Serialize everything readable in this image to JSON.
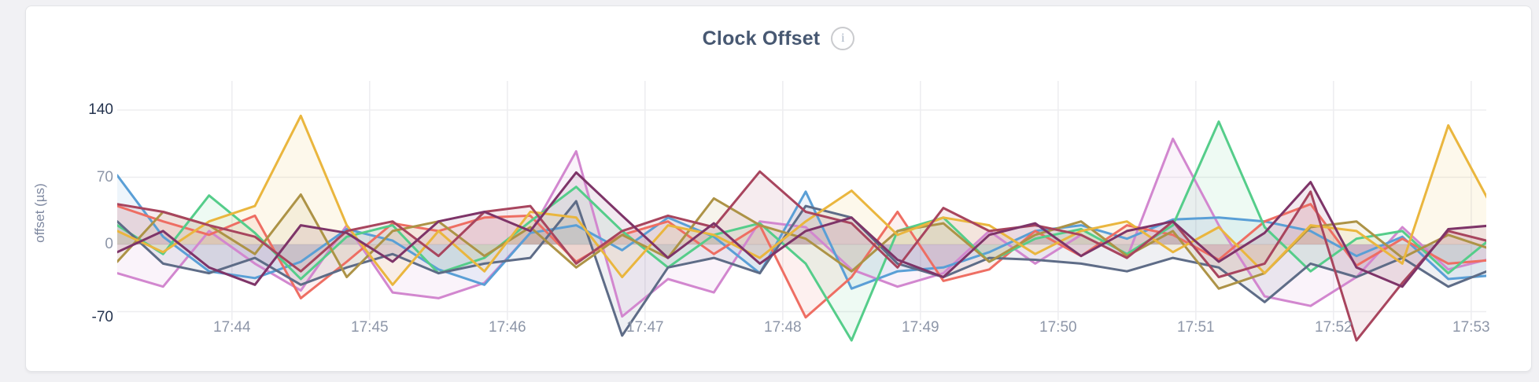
{
  "page": {
    "background": "#f1f1f4"
  },
  "card": {
    "background": "#ffffff",
    "border_color": "#e3e4e7"
  },
  "header": {
    "title": "Clock Offset",
    "info_icon_glyph": "i"
  },
  "axis_style": {
    "tick_label_color": "#8d96a8",
    "emphasis_label_color": "#25344f",
    "grid_color": "#ededf0",
    "title_color": "#475872"
  },
  "chart_data": {
    "type": "line",
    "title": "Clock Offset",
    "xlabel": "",
    "ylabel": "offset (µs)",
    "legend": "none",
    "grid": true,
    "area_fill": true,
    "area_opacity": 0.1,
    "line_width": 3,
    "ylim": [
      -111,
      145
    ],
    "y_ticks": [
      {
        "label": "140",
        "value": 140,
        "emphasis": true
      },
      {
        "label": "70",
        "value": 70,
        "emphasis": false
      },
      {
        "label": "0",
        "value": 0,
        "emphasis": false
      },
      {
        "label": "-70",
        "value": -70,
        "emphasis": true
      }
    ],
    "x_tick_labels": [
      "17:44",
      "17:45",
      "17:46",
      "17:47",
      "17:48",
      "17:49",
      "17:50",
      "17:51",
      "17:52",
      "17:53"
    ],
    "x_window": "17:43:10 - 17:53:10",
    "sample_interval_seconds": 20,
    "first_tick_offset_seconds": 50,
    "series": [
      {
        "id": "series-orchid",
        "color": "#d287cf",
        "values": [
          -30,
          -44,
          14,
          -20,
          -48,
          20,
          -50,
          -56,
          -40,
          12,
          97,
          -75,
          -36,
          -50,
          24,
          18,
          -26,
          -44,
          -30,
          14,
          -20,
          10,
          -14,
          110,
          20,
          -54,
          -64,
          -34,
          18,
          -26,
          -14
        ]
      },
      {
        "id": "series-blue",
        "color": "#5a9fd6",
        "values": [
          72,
          8,
          -28,
          -35,
          -18,
          16,
          4,
          -26,
          -42,
          12,
          20,
          -6,
          28,
          8,
          -30,
          55,
          -46,
          -28,
          -24,
          -8,
          14,
          20,
          6,
          26,
          28,
          24,
          14,
          -12,
          8,
          -36,
          -32
        ]
      },
      {
        "id": "series-salmon",
        "color": "#ee6e63",
        "values": [
          40,
          24,
          10,
          30,
          -56,
          -18,
          22,
          14,
          28,
          30,
          -18,
          10,
          24,
          -10,
          20,
          -76,
          -34,
          34,
          -38,
          -26,
          14,
          -12,
          20,
          10,
          -16,
          24,
          42,
          -22,
          6,
          -20,
          -16
        ]
      },
      {
        "id": "series-green",
        "color": "#55cd8a",
        "values": [
          20,
          -10,
          51,
          12,
          -36,
          8,
          20,
          -30,
          -14,
          24,
          60,
          14,
          -24,
          10,
          22,
          -20,
          -100,
          14,
          28,
          -18,
          6,
          16,
          -10,
          20,
          128,
          18,
          -28,
          6,
          14,
          -30,
          9
        ]
      },
      {
        "id": "series-slate",
        "color": "#5e6c87",
        "values": [
          24,
          -20,
          -30,
          -14,
          -42,
          -24,
          -10,
          -30,
          -20,
          -14,
          45,
          -95,
          -24,
          -14,
          -30,
          40,
          28,
          -20,
          -34,
          -14,
          -16,
          -20,
          -28,
          -14,
          -24,
          -60,
          -20,
          -34,
          -14,
          -44,
          -25
        ]
      },
      {
        "id": "series-olive",
        "color": "#ad9346",
        "values": [
          -18,
          34,
          20,
          -10,
          52,
          -34,
          14,
          24,
          -12,
          18,
          -24,
          10,
          -14,
          48,
          20,
          6,
          -28,
          14,
          22,
          -18,
          10,
          24,
          -12,
          14,
          -46,
          -30,
          18,
          24,
          -14,
          10,
          -6
        ]
      },
      {
        "id": "series-amber",
        "color": "#eab63e",
        "values": [
          14,
          -8,
          24,
          40,
          134,
          20,
          -42,
          14,
          -28,
          34,
          28,
          -34,
          20,
          10,
          -14,
          24,
          56,
          10,
          28,
          20,
          -10,
          14,
          24,
          -8,
          18,
          -30,
          20,
          14,
          -20,
          124,
          35
        ]
      },
      {
        "id": "series-wine",
        "color": "#a8455e",
        "values": [
          42,
          34,
          20,
          8,
          -28,
          14,
          24,
          -12,
          34,
          40,
          -20,
          14,
          30,
          18,
          76,
          34,
          22,
          -24,
          38,
          14,
          20,
          10,
          -14,
          24,
          -34,
          -20,
          55,
          -100,
          -40,
          14,
          2
        ]
      },
      {
        "id": "series-plum",
        "color": "#7e3468",
        "values": [
          -8,
          14,
          -24,
          -42,
          20,
          12,
          -18,
          24,
          34,
          14,
          75,
          30,
          -14,
          22,
          -20,
          14,
          28,
          -16,
          -34,
          10,
          22,
          -12,
          14,
          24,
          -18,
          12,
          65,
          -24,
          -44,
          16,
          20
        ]
      }
    ]
  }
}
